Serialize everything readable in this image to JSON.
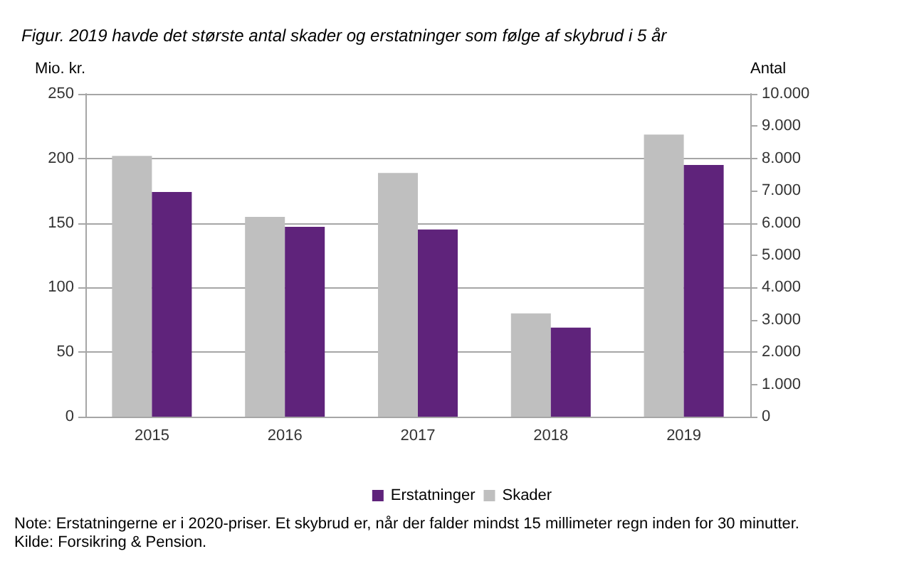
{
  "chart_data": {
    "type": "bar",
    "title": "Figur. 2019 havde det største antal skader og erstatninger som følge af skybrud i 5 år",
    "ylabel": "Mio. kr.",
    "y2label": "Antal",
    "categories": [
      "2015",
      "2016",
      "2017",
      "2018",
      "2019"
    ],
    "series": [
      {
        "name": "Skader",
        "color": "#bfbfbf",
        "axis": "y2",
        "values": [
          8080,
          6190,
          7550,
          3200,
          8740
        ]
      },
      {
        "name": "Erstatninger",
        "color": "#5f237b",
        "values": [
          174,
          147,
          145,
          69,
          195
        ]
      }
    ],
    "ylim": [
      0,
      250
    ],
    "yticks": [
      0,
      50,
      100,
      150,
      200,
      250
    ],
    "y2lim": [
      0,
      10000
    ],
    "y2ticks": [
      {
        "value": 0,
        "label": "0"
      },
      {
        "value": 1000,
        "label": "1.000"
      },
      {
        "value": 2000,
        "label": "2.000"
      },
      {
        "value": 3000,
        "label": "3.000"
      },
      {
        "value": 4000,
        "label": "4.000"
      },
      {
        "value": 5000,
        "label": "5.000"
      },
      {
        "value": 6000,
        "label": "6.000"
      },
      {
        "value": 7000,
        "label": "7.000"
      },
      {
        "value": 8000,
        "label": "8.000"
      },
      {
        "value": 9000,
        "label": "9.000"
      },
      {
        "value": 10000,
        "label": "10.000"
      }
    ],
    "grid": "y",
    "legend": "bottom",
    "annotations": [
      "Note: Erstatningerne er i 2020-priser. Et skybrud er, når der falder mindst 15 millimeter regn inden for 30 minutter.",
      "Kilde: Forsikring & Pension."
    ]
  }
}
